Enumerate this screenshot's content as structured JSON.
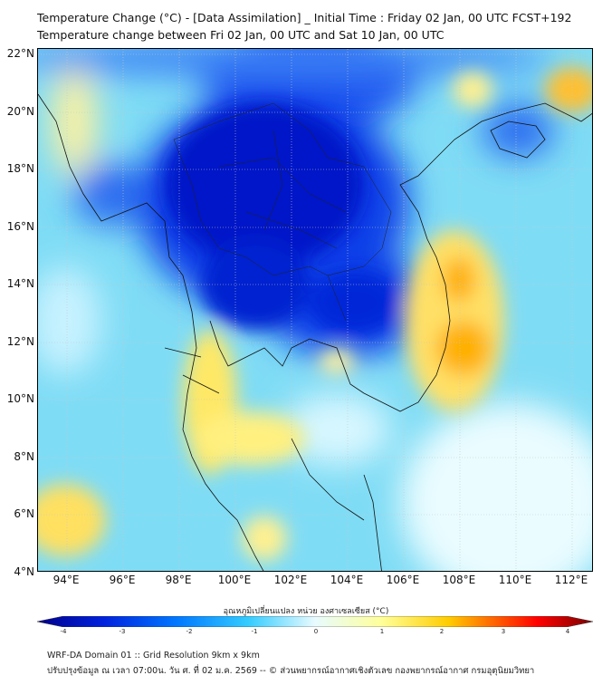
{
  "header": {
    "title": "Temperature Change (°C) - [Data Assimilation] _ Initial Time : Friday 02 Jan, 00 UTC FCST+192",
    "subtitle": "Temperature change between Fri 02 Jan, 00 UTC and Sat 10 Jan, 00 UTC"
  },
  "map": {
    "lat_labels": [
      "22°N",
      "20°N",
      "18°N",
      "16°N",
      "14°N",
      "12°N",
      "10°N",
      "8°N",
      "6°N",
      "4°N"
    ],
    "lon_labels": [
      "94°E",
      "96°E",
      "98°E",
      "100°E",
      "102°E",
      "104°E",
      "106°E",
      "108°E",
      "110°E",
      "112°E"
    ]
  },
  "colorbar": {
    "title": "อุณหภูมิเปลี่ยนแปลง หน่วย องศาเซลเซียส (°C)",
    "ticks": [
      "-4",
      "-3",
      "-2",
      "-1",
      "0",
      "1",
      "2",
      "3",
      "4"
    ],
    "range": [
      -4,
      4
    ],
    "colors": [
      "#00008b",
      "#0022dd",
      "#0077ff",
      "#33ccff",
      "#e8fbff",
      "#ffff99",
      "#ffcc00",
      "#ff6600",
      "#ff0000",
      "#7a0000"
    ]
  },
  "footer": {
    "line1": "WRF-DA Domain 01 :: Grid Resolution 9km x 9km",
    "line2": "ปรับปรุงข้อมูล ณ เวลา 07:00น. วัน ศ. ที่ 02 ม.ค. 2569 -- © ส่วนพยากรณ์อากาศเชิงตัวเลข กองพยากรณ์อากาศ กรมอุตุนิยมวิทยา"
  }
}
